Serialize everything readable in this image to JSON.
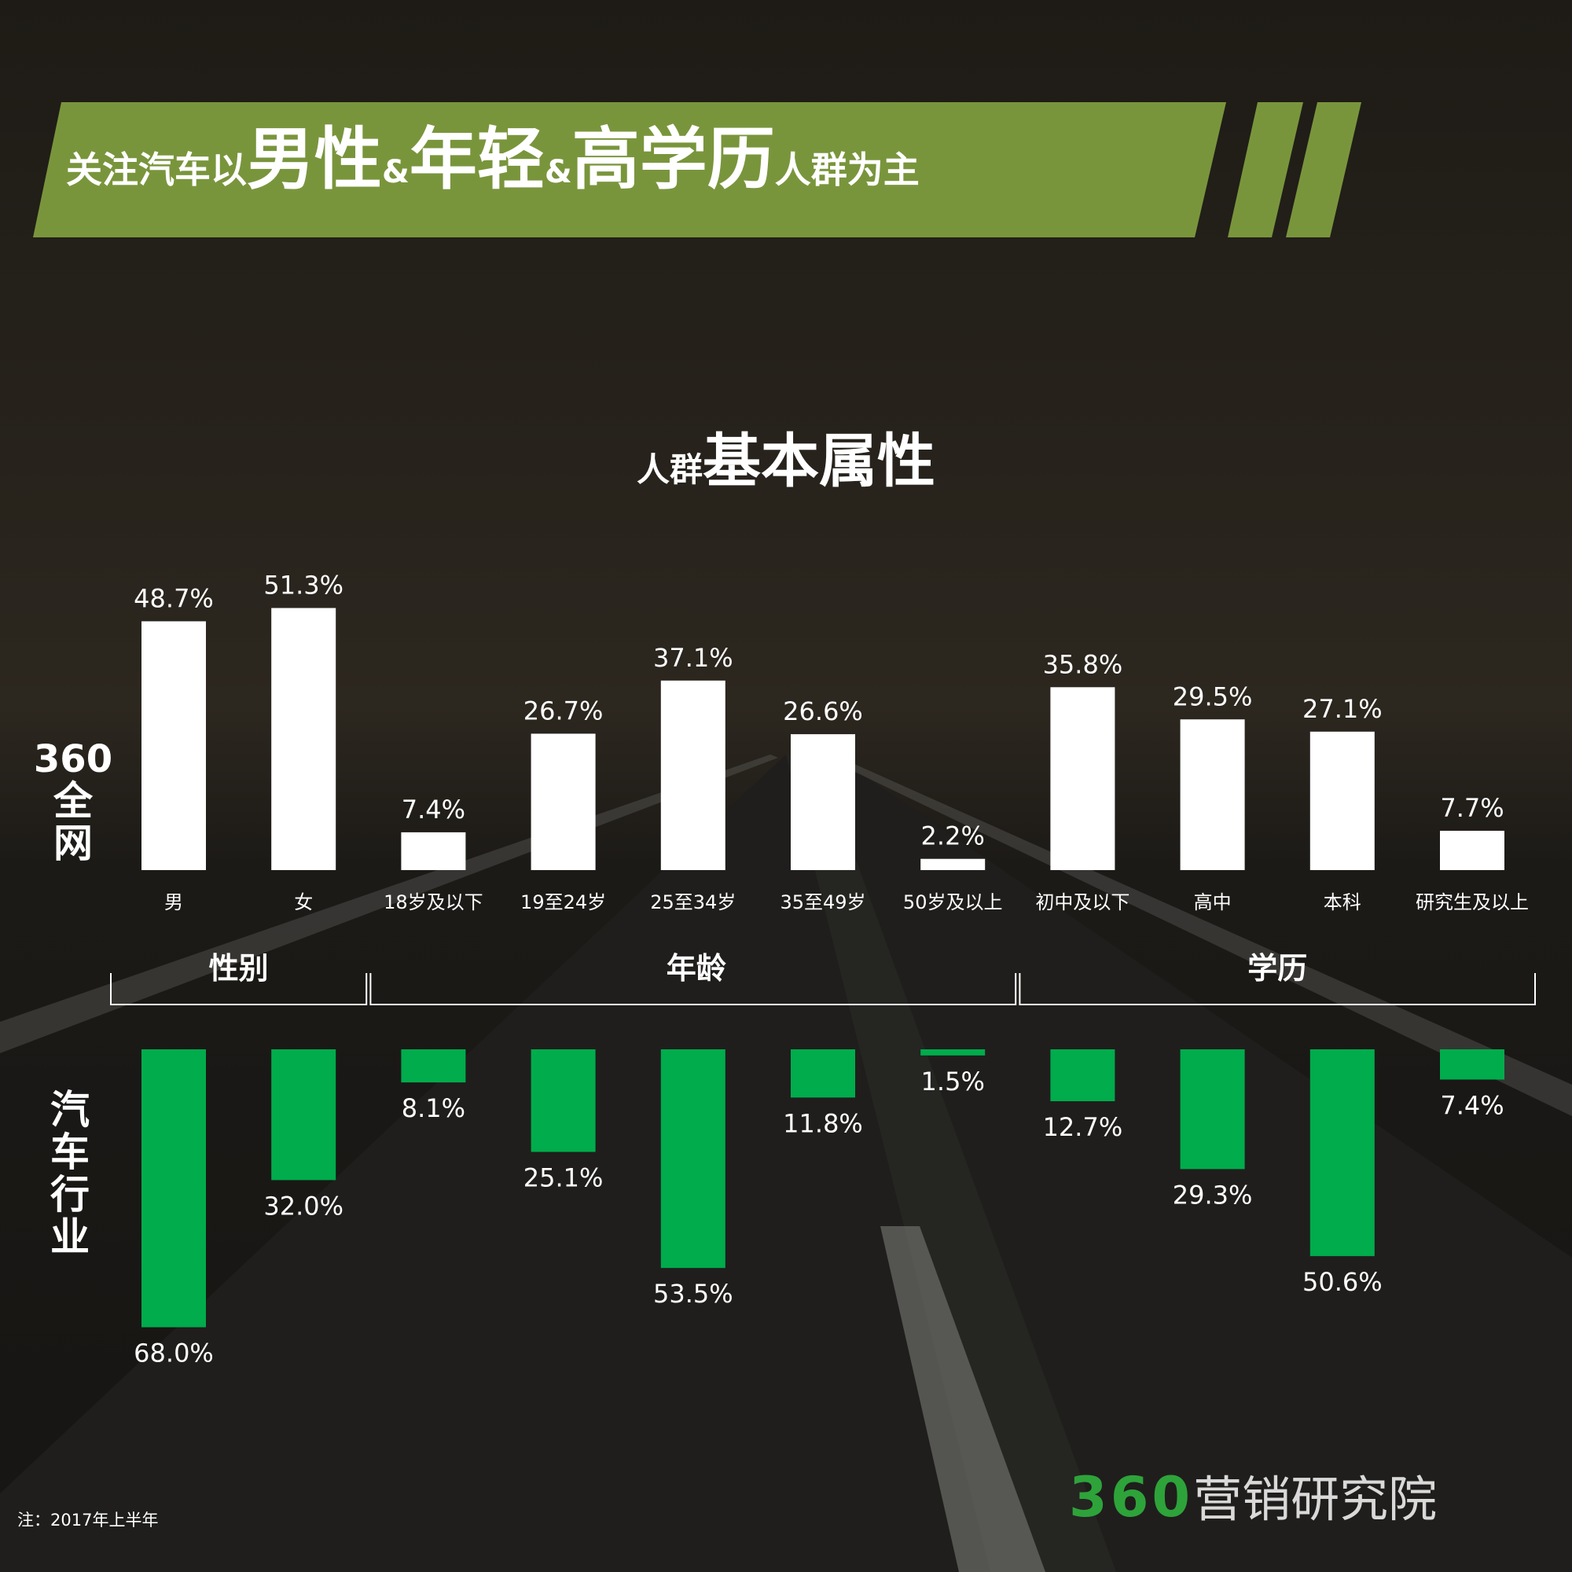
{
  "header": {
    "title_parts": [
      "关注汽车以",
      "男性",
      "&",
      "年轻",
      "&",
      "高学历",
      "人群为主"
    ],
    "subtitle_small": "人群",
    "subtitle_big": "基本属性"
  },
  "row_labels": {
    "top": "360全网",
    "bottom": "汽车行业"
  },
  "groups": [
    "性别",
    "年龄",
    "学历"
  ],
  "note": "注：2017年上半年",
  "brand": {
    "number": "360",
    "text": "营销研究院"
  },
  "colors": {
    "top_bar": "#ffffff",
    "bottom_bar": "#00ac4c",
    "banner": "#79953c"
  },
  "chart_data": {
    "type": "bar",
    "categories": [
      "男",
      "女",
      "18岁及以下",
      "19至24岁",
      "25至34岁",
      "35至49岁",
      "50岁及以上",
      "初中及以下",
      "高中",
      "本科",
      "研究生及以上"
    ],
    "category_groups": [
      {
        "name": "性别",
        "categories": [
          "男",
          "女"
        ]
      },
      {
        "name": "年龄",
        "categories": [
          "18岁及以下",
          "19至24岁",
          "25至34岁",
          "35至49岁",
          "50岁及以上"
        ]
      },
      {
        "name": "学历",
        "categories": [
          "初中及以下",
          "高中",
          "本科",
          "研究生及以上"
        ]
      }
    ],
    "series": [
      {
        "name": "360全网",
        "values": [
          48.7,
          51.3,
          7.4,
          26.7,
          37.1,
          26.6,
          2.2,
          35.8,
          29.5,
          27.1,
          7.7
        ]
      },
      {
        "name": "汽车行业",
        "values": [
          68.0,
          32.0,
          8.1,
          25.1,
          53.5,
          11.8,
          1.5,
          12.7,
          29.3,
          50.6,
          7.4
        ]
      }
    ],
    "value_labels": {
      "360全网": [
        "48.7%",
        "51.3%",
        "7.4%",
        "26.7%",
        "37.1%",
        "26.6%",
        "2.2%",
        "35.8%",
        "29.5%",
        "27.1%",
        "7.7%"
      ],
      "汽车行业": [
        "68.0%",
        "32.0%",
        "8.1%",
        "25.1%",
        "53.5%",
        "11.8%",
        "1.5%",
        "12.7%",
        "29.3%",
        "50.6%",
        "7.4%"
      ]
    },
    "unit": "%"
  }
}
